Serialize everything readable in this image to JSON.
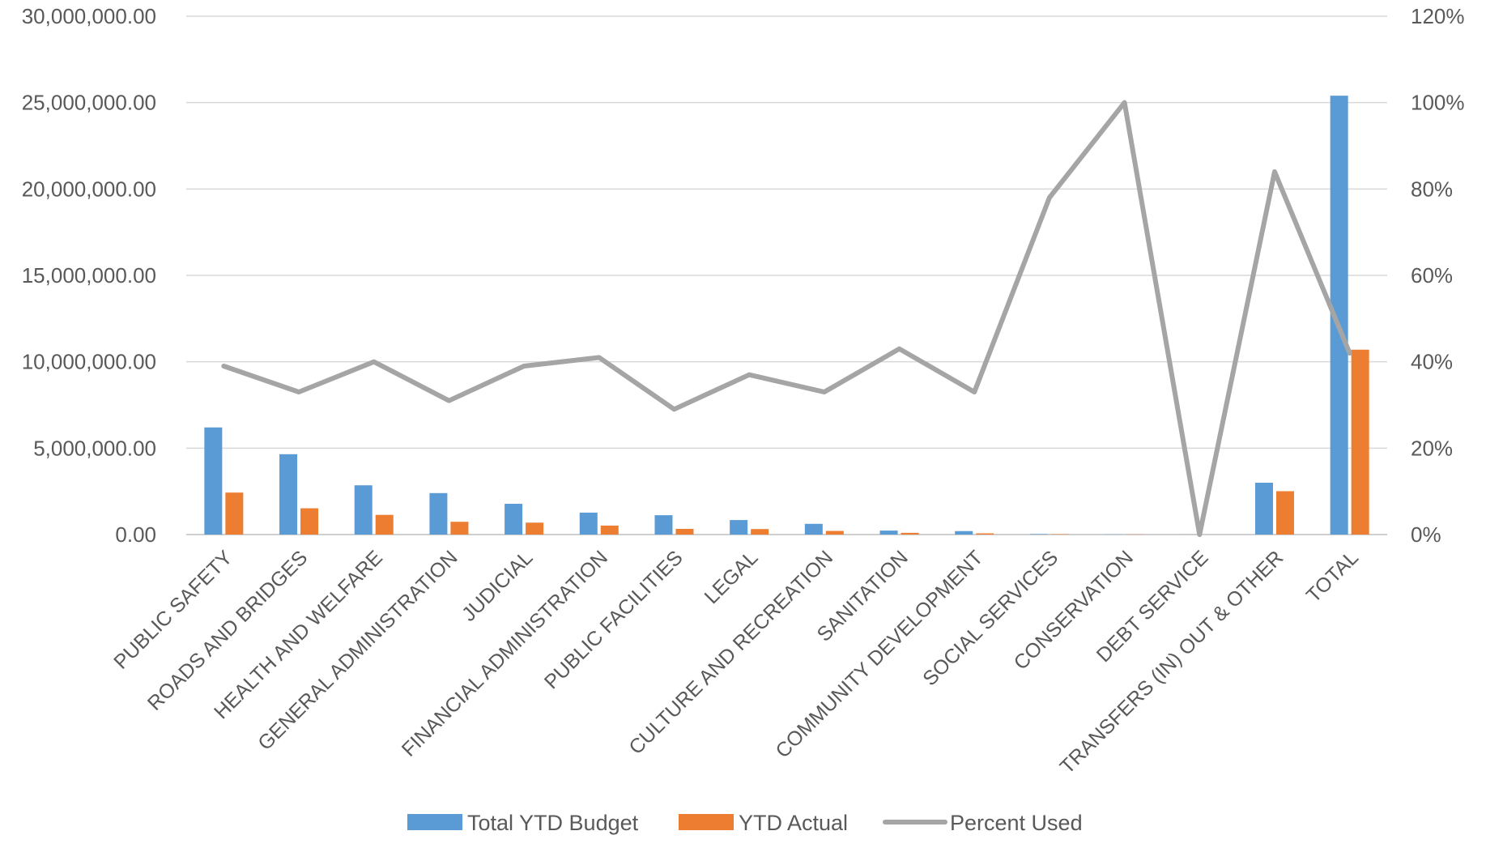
{
  "chart_data": {
    "type": "bar",
    "categories": [
      "PUBLIC SAFETY",
      "ROADS AND BRIDGES",
      "HEALTH AND WELFARE",
      "GENERAL ADMINISTRATION",
      "JUDICIAL",
      "FINANCIAL ADMINISTRATION",
      "PUBLIC FACILITIES",
      "LEGAL",
      "CULTURE AND RECREATION",
      "SANITATION",
      "COMMUNITY DEVELOPMENT",
      "SOCIAL SERVICES",
      "CONSERVATION",
      "DEBT SERVICE",
      "TRANSFERS (IN) OUT & OTHER",
      "TOTAL"
    ],
    "series": [
      {
        "name": "Total YTD Budget",
        "type": "bar",
        "axis": "left",
        "color": "#5B9BD5",
        "values": [
          6200000,
          4650000,
          2850000,
          2400000,
          1780000,
          1270000,
          1120000,
          840000,
          620000,
          230000,
          200000,
          30000,
          10000,
          5000,
          3000000,
          25400000
        ]
      },
      {
        "name": "YTD Actual",
        "type": "bar",
        "axis": "left",
        "color": "#ED7D31",
        "values": [
          2430000,
          1520000,
          1140000,
          740000,
          690000,
          520000,
          330000,
          320000,
          210000,
          100000,
          70000,
          23000,
          10000,
          0,
          2510000,
          10700000
        ]
      },
      {
        "name": "Percent Used",
        "type": "line",
        "axis": "right",
        "color": "#A5A5A5",
        "values": [
          39,
          33,
          40,
          31,
          39,
          41,
          29,
          37,
          33,
          43,
          33,
          78,
          100,
          0,
          84,
          42
        ]
      }
    ],
    "y_left": {
      "min": 0,
      "max": 30000000,
      "step": 5000000,
      "tick_labels": [
        "0.00",
        "5,000,000.00",
        "10,000,000.00",
        "15,000,000.00",
        "20,000,000.00",
        "25,000,000.00",
        "30,000,000.00"
      ]
    },
    "y_right": {
      "min": 0,
      "max": 120,
      "step": 20,
      "tick_labels": [
        "0%",
        "20%",
        "40%",
        "60%",
        "80%",
        "100%",
        "120%"
      ]
    },
    "grid": true,
    "legend_position": "bottom",
    "title": "",
    "xlabel": "",
    "ylabel": ""
  }
}
